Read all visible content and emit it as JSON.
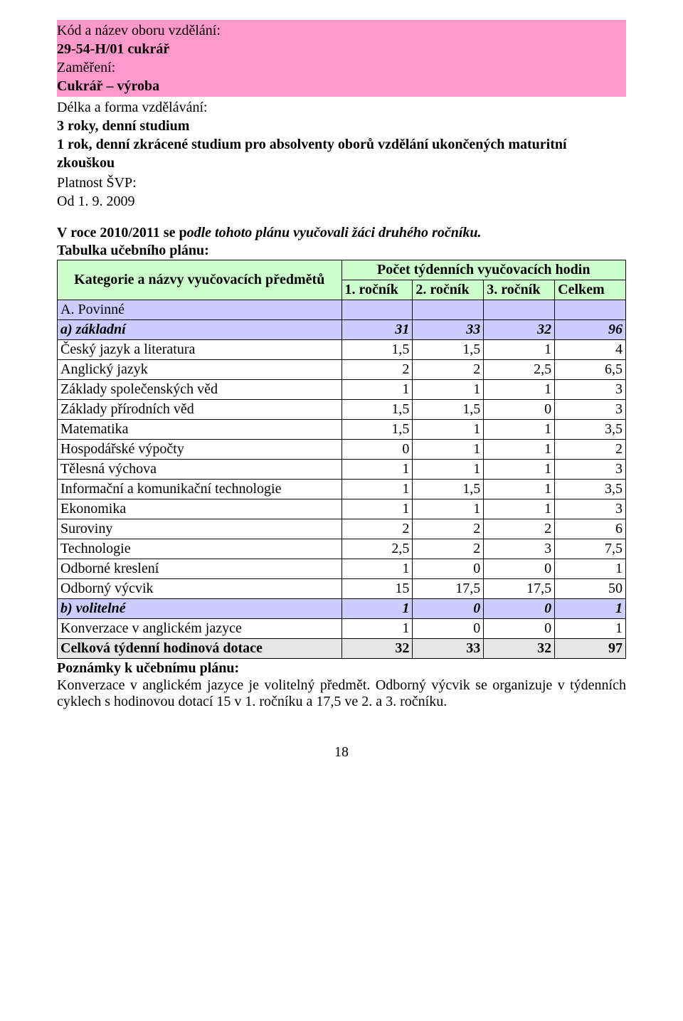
{
  "header": {
    "kod_label": "Kód a název oboru vzdělání:",
    "kod_value": "29-54-H/01 cukrář",
    "zamereni_label": "Zaměření:",
    "zamereni_value": "Cukrář – výroba",
    "delka_label": "Délka a forma vzdělávání:",
    "delka_line1": "3 roky, denní studium",
    "delka_line2": "1 rok, denní zkrácené studium pro absolventy oborů vzdělání ukončených maturitní zkouškou"
  },
  "validity": {
    "label": "Platnost ŠVP:",
    "value": "Od 1. 9. 2009"
  },
  "sentence": {
    "prefix": "V roce 2010/2011 se p",
    "italic": "odle tohoto plánu vyučovali žáci druhého ročníku."
  },
  "table": {
    "title": "Tabulka učebního plánu:",
    "col_header_left": "Kategorie a názvy vyučovacích předmětů",
    "col_header_right": "Počet týdenních vyučovacích hodin",
    "subcols": [
      "1. ročník",
      "2. ročník",
      "3. ročník",
      "Celkem"
    ],
    "rows": [
      {
        "class": "lilac",
        "label": "A. Povinné",
        "v": [
          "",
          "",
          "",
          ""
        ],
        "bold": false,
        "italic": false
      },
      {
        "class": "lilac",
        "label": "a) základní",
        "v": [
          "31",
          "33",
          "32",
          "96"
        ],
        "bold": true,
        "italic": true
      },
      {
        "class": "",
        "label": "Český jazyk a literatura",
        "v": [
          "1,5",
          "1,5",
          "1",
          "4"
        ],
        "bold": false,
        "italic": false
      },
      {
        "class": "",
        "label": "Anglický jazyk",
        "v": [
          "2",
          "2",
          "2,5",
          "6,5"
        ],
        "bold": false,
        "italic": false
      },
      {
        "class": "",
        "label": "Základy společenských věd",
        "v": [
          "1",
          "1",
          "1",
          "3"
        ],
        "bold": false,
        "italic": false
      },
      {
        "class": "",
        "label": "Základy přírodních věd",
        "v": [
          "1,5",
          "1,5",
          "0",
          "3"
        ],
        "bold": false,
        "italic": false
      },
      {
        "class": "",
        "label": "Matematika",
        "v": [
          "1,5",
          "1",
          "1",
          "3,5"
        ],
        "bold": false,
        "italic": false
      },
      {
        "class": "",
        "label": "Hospodářské výpočty",
        "v": [
          "0",
          "1",
          "1",
          "2"
        ],
        "bold": false,
        "italic": false
      },
      {
        "class": "",
        "label": "Tělesná výchova",
        "v": [
          "1",
          "1",
          "1",
          "3"
        ],
        "bold": false,
        "italic": false
      },
      {
        "class": "",
        "label": "Informační a komunikační technologie",
        "v": [
          "1",
          "1,5",
          "1",
          "3,5"
        ],
        "bold": false,
        "italic": false
      },
      {
        "class": "",
        "label": "Ekonomika",
        "v": [
          "1",
          "1",
          "1",
          "3"
        ],
        "bold": false,
        "italic": false
      },
      {
        "class": "",
        "label": "Suroviny",
        "v": [
          "2",
          "2",
          "2",
          "6"
        ],
        "bold": false,
        "italic": false
      },
      {
        "class": "",
        "label": "Technologie",
        "v": [
          "2,5",
          "2",
          "3",
          "7,5"
        ],
        "bold": false,
        "italic": false
      },
      {
        "class": "",
        "label": "Odborné kreslení",
        "v": [
          "1",
          "0",
          "0",
          "1"
        ],
        "bold": false,
        "italic": false
      },
      {
        "class": "",
        "label": "Odborný výcvik",
        "v": [
          "15",
          "17,5",
          "17,5",
          "50"
        ],
        "bold": false,
        "italic": false
      },
      {
        "class": "lilac",
        "label": "b) volitelné",
        "v": [
          "1",
          "0",
          "0",
          "1"
        ],
        "bold": true,
        "italic": true
      },
      {
        "class": "",
        "label": "Konverzace v anglickém jazyce",
        "v": [
          "1",
          "0",
          "0",
          "1"
        ],
        "bold": false,
        "italic": false
      },
      {
        "class": "grey",
        "label": "Celková týdenní hodinová dotace",
        "v": [
          "32",
          "33",
          "32",
          "97"
        ],
        "bold": true,
        "italic": false
      }
    ]
  },
  "notes": {
    "title": "Poznámky k učebnímu plánu:",
    "body": "Konverzace v anglickém jazyce je volitelný předmět. Odborný výcvik se organizuje v týdenních cyklech s hodinovou dotací 15 v 1. ročníku a 17,5 ve 2. a 3. ročníku."
  },
  "page_number": "18"
}
